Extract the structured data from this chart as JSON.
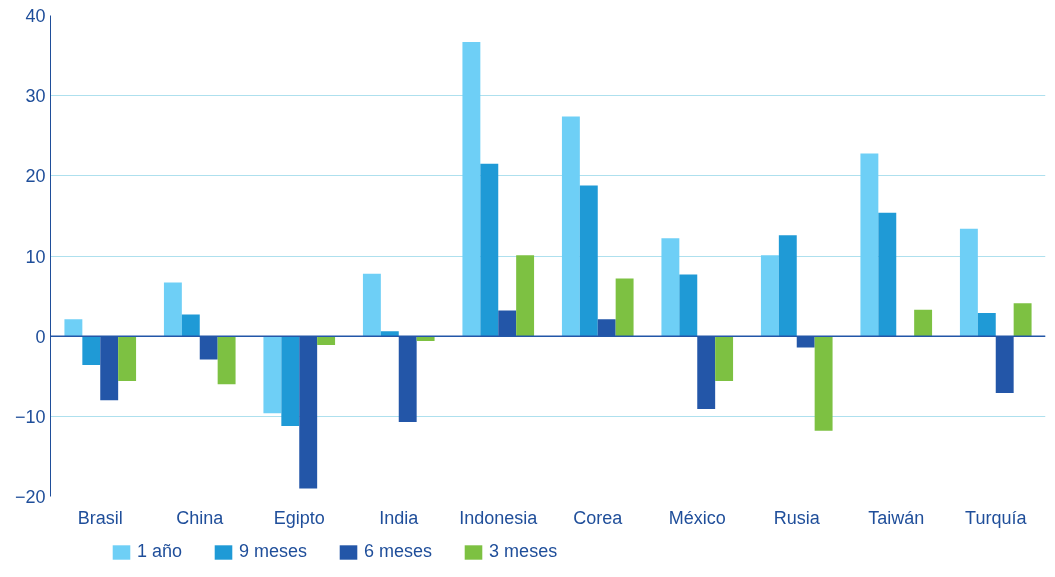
{
  "chart_data": {
    "type": "bar",
    "categories": [
      "Brasil",
      "China",
      "Egipto",
      "India",
      "Indonesia",
      "Corea",
      "México",
      "Rusia",
      "Taiwán",
      "Turquía"
    ],
    "series": [
      {
        "name": "1 año",
        "color": "#6ecff6",
        "values": [
          2.1,
          6.7,
          -9.6,
          7.8,
          36.7,
          27.4,
          12.2,
          10.1,
          22.8,
          13.4
        ]
      },
      {
        "name": "9 meses",
        "color": "#1f9ad6",
        "values": [
          -3.6,
          2.7,
          -11.2,
          0.6,
          21.5,
          18.8,
          7.7,
          12.6,
          15.4,
          2.9
        ]
      },
      {
        "name": "6 meses",
        "color": "#2356a8",
        "values": [
          -8.0,
          -2.9,
          -19.0,
          -10.7,
          3.2,
          2.1,
          -9.1,
          -1.4,
          null,
          -7.1
        ]
      },
      {
        "name": "3 meses",
        "color": "#7dc142",
        "values": [
          -5.6,
          -6.0,
          -1.1,
          -0.6,
          10.1,
          7.2,
          -5.6,
          -11.8,
          3.3,
          4.1
        ]
      }
    ],
    "ylim": [
      -20,
      40
    ],
    "yticks": [
      -20,
      -10,
      0,
      10,
      20,
      30,
      40
    ],
    "grid": "y",
    "legend": "bottom left",
    "ref_lines": [
      {
        "axis": "y",
        "value": 0,
        "label": null,
        "color": "#2356a8"
      }
    ]
  }
}
